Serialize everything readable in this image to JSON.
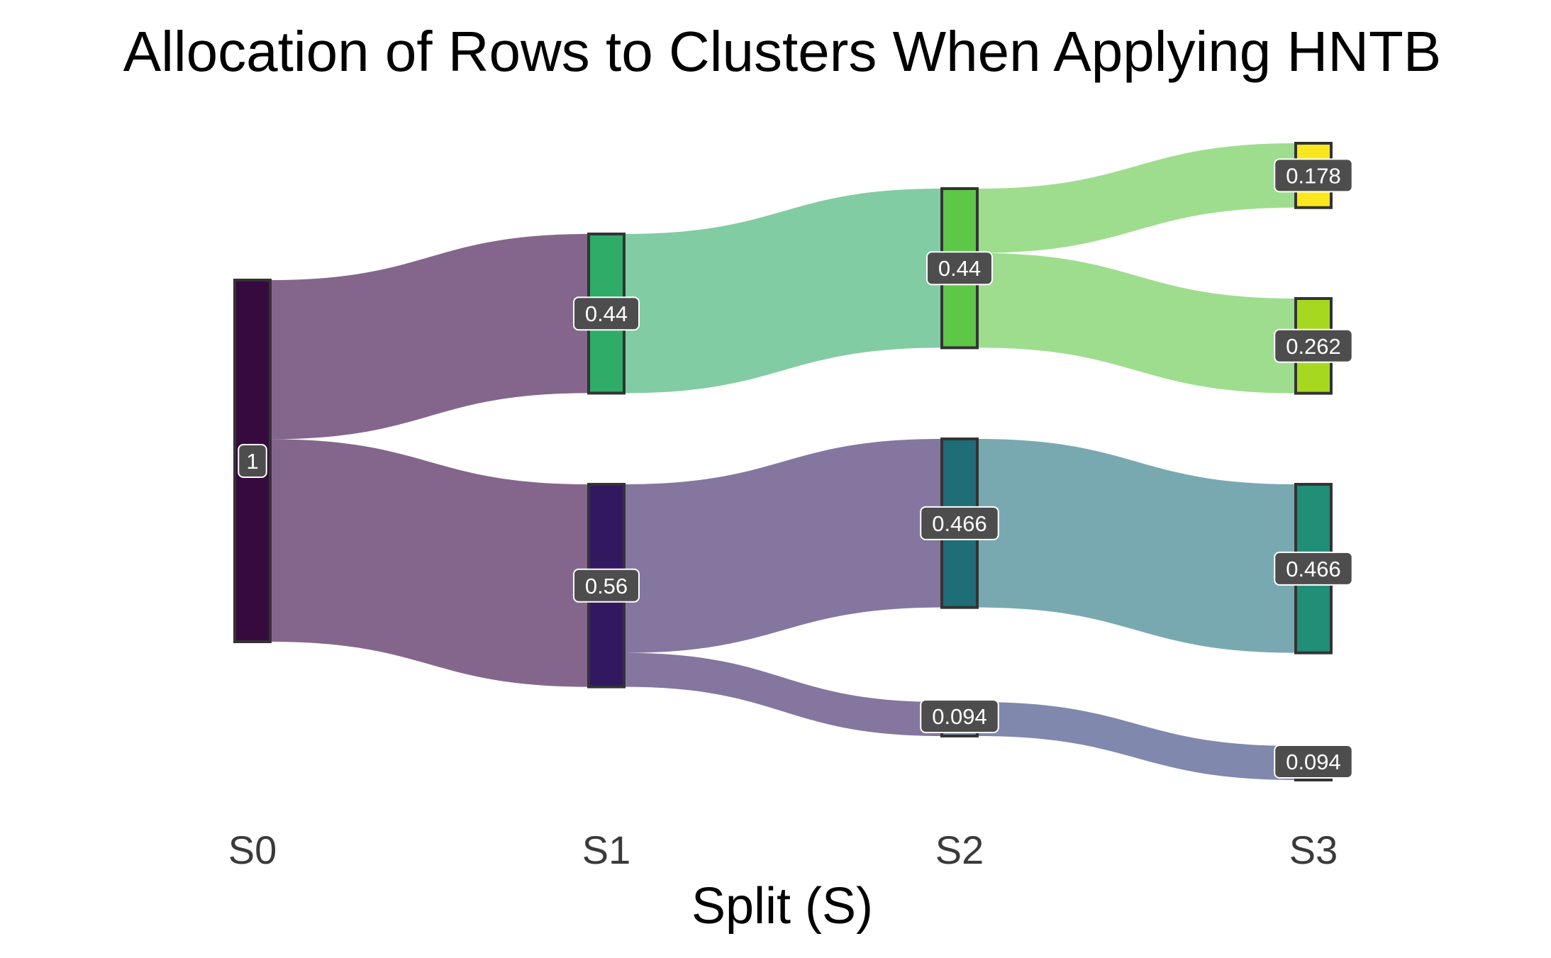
{
  "chart_data": {
    "type": "sankey",
    "title": "Allocation of Rows to Clusters When Applying HNTB",
    "xlabel": "Split (S)",
    "ylabel": "",
    "stages": [
      "S0",
      "S1",
      "S2",
      "S3"
    ],
    "nodes": [
      {
        "id": "s0_all",
        "stage": 0,
        "value": 1,
        "label": "1",
        "color": "#370a3f"
      },
      {
        "id": "s1_a",
        "stage": 1,
        "value": 0.44,
        "label": "0.44",
        "color": "#2eac68"
      },
      {
        "id": "s1_b",
        "stage": 1,
        "value": 0.56,
        "label": "0.56",
        "color": "#32195f"
      },
      {
        "id": "s2_a",
        "stage": 2,
        "value": 0.44,
        "label": "0.44",
        "color": "#5ec748"
      },
      {
        "id": "s2_b",
        "stage": 2,
        "value": 0.466,
        "label": "0.466",
        "color": "#1f6d77"
      },
      {
        "id": "s2_c",
        "stage": 2,
        "value": 0.094,
        "label": "0.094",
        "color": "#8088ae"
      },
      {
        "id": "s3_a",
        "stage": 3,
        "value": 0.178,
        "label": "0.178",
        "color": "#fbe71f"
      },
      {
        "id": "s3_b",
        "stage": 3,
        "value": 0.262,
        "label": "0.262",
        "color": "#a7d820"
      },
      {
        "id": "s3_c",
        "stage": 3,
        "value": 0.466,
        "label": "0.466",
        "color": "#218e78"
      },
      {
        "id": "s3_d",
        "stage": 3,
        "value": 0.094,
        "label": "0.094",
        "color": "#8088ae"
      }
    ],
    "links": [
      {
        "source": "s0_all",
        "target": "s1_a",
        "value": 0.44,
        "color": "#84668c"
      },
      {
        "source": "s0_all",
        "target": "s1_b",
        "value": 0.56,
        "color": "#84668c"
      },
      {
        "source": "s1_a",
        "target": "s2_a",
        "value": 0.44,
        "color": "#82cca3"
      },
      {
        "source": "s1_b",
        "target": "s2_b",
        "value": 0.466,
        "color": "#8576a0"
      },
      {
        "source": "s1_b",
        "target": "s2_c",
        "value": 0.094,
        "color": "#8576a0"
      },
      {
        "source": "s2_a",
        "target": "s3_a",
        "value": 0.178,
        "color": "#9edd8e"
      },
      {
        "source": "s2_a",
        "target": "s3_b",
        "value": 0.262,
        "color": "#9edd8e"
      },
      {
        "source": "s2_b",
        "target": "s3_c",
        "value": 0.466,
        "color": "#79a9b0"
      },
      {
        "source": "s2_c",
        "target": "s3_d",
        "value": 0.094,
        "color": "#8088ae"
      }
    ],
    "label_box_color": "#4d4d4d",
    "label_text_color": "#ffffff",
    "node_border_color": "#333333"
  }
}
